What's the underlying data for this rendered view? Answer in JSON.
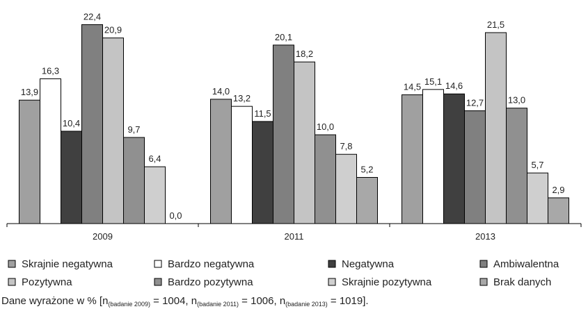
{
  "chart_data": {
    "type": "bar",
    "categories": [
      "2009",
      "2011",
      "2013"
    ],
    "series": [
      {
        "name": "Skrajnie negatywna",
        "color": "#a0a0a0",
        "values": [
          13.9,
          14.0,
          14.5
        ],
        "value_labels": [
          "13,9",
          "14,0",
          "14,5"
        ]
      },
      {
        "name": "Bardzo negatywna",
        "color": "#ffffff",
        "values": [
          16.3,
          13.2,
          15.1
        ],
        "value_labels": [
          "16,3",
          "13,2",
          "15,1"
        ]
      },
      {
        "name": "Negatywna",
        "color": "#404040",
        "values": [
          10.4,
          11.5,
          14.6
        ],
        "value_labels": [
          "10,4",
          "11,5",
          "14,6"
        ]
      },
      {
        "name": "Ambiwalentna",
        "color": "#808080",
        "values": [
          22.4,
          20.1,
          12.7
        ],
        "value_labels": [
          "22,4",
          "20,1",
          "12,7"
        ]
      },
      {
        "name": "Pozytywna",
        "color": "#c4c4c4",
        "values": [
          20.9,
          18.2,
          21.5
        ],
        "value_labels": [
          "20,9",
          "18,2",
          "21,5"
        ]
      },
      {
        "name": "Bardzo pozytywna",
        "color": "#909090",
        "values": [
          9.7,
          10.0,
          13.0
        ],
        "value_labels": [
          "9,7",
          "10,0",
          "13,0"
        ]
      },
      {
        "name": "Skrajnie pozytywna",
        "color": "#cfcfcf",
        "values": [
          6.4,
          7.8,
          5.7
        ],
        "value_labels": [
          "6,4",
          "7,8",
          "5,7"
        ]
      },
      {
        "name": "Brak danych",
        "color": "#a8a8a8",
        "values": [
          0.0,
          5.2,
          2.9
        ],
        "value_labels": [
          "0,0",
          "5,2",
          "2,9"
        ]
      }
    ],
    "ylim": [
      0,
      24
    ],
    "note": [
      "Dane wyrażone w % [n",
      "(badanie 2009)",
      " = 1004, n",
      "(badanie 2011)",
      " = 1006, n",
      "(badanie 2013)",
      " = 1019]."
    ]
  }
}
